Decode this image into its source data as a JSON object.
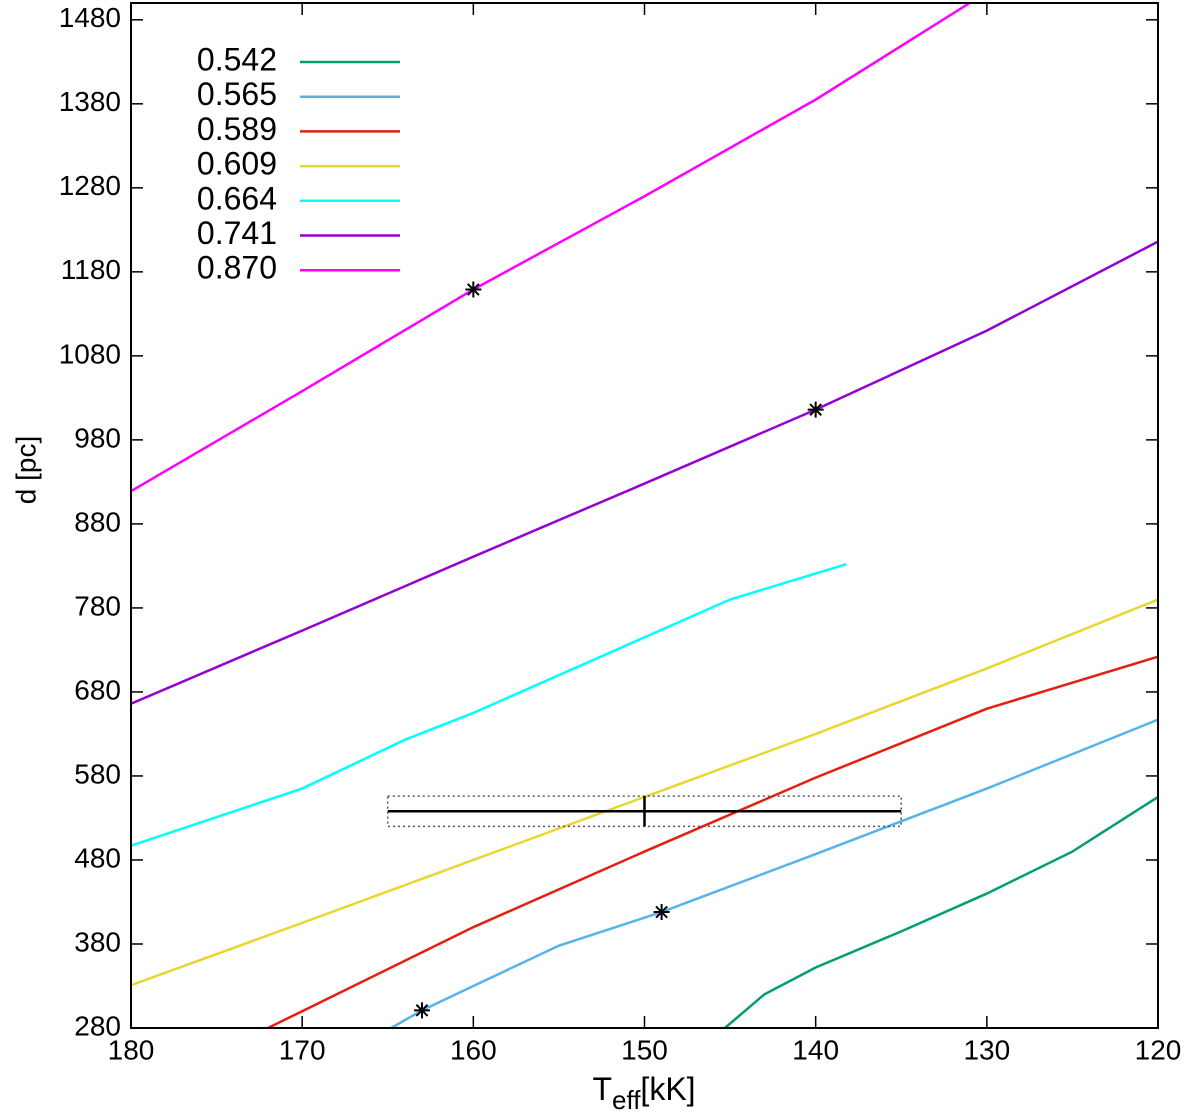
{
  "chart_data": {
    "type": "line",
    "xlabel": "T",
    "xlabel_sub": "eff",
    "xlabel_unit": "[kK]",
    "ylabel": "d [pc]",
    "xlim": [
      180,
      120
    ],
    "ylim": [
      280,
      1500
    ],
    "xticks": [
      180,
      170,
      160,
      150,
      140,
      130,
      120
    ],
    "yticks": [
      280,
      380,
      480,
      580,
      680,
      780,
      880,
      980,
      1080,
      1180,
      1280,
      1380,
      1480
    ],
    "legend": "top-left",
    "series": [
      {
        "name": "0.542",
        "color": "#009e73",
        "x": [
          145.3,
          143,
          140,
          135,
          130,
          125,
          120
        ],
        "values": [
          280,
          320,
          352,
          395,
          440,
          490,
          555
        ]
      },
      {
        "name": "0.565",
        "color": "#56b4e9",
        "x": [
          164.8,
          163,
          160,
          155,
          149,
          140,
          130,
          120
        ],
        "values": [
          280,
          301,
          330,
          378,
          418,
          487,
          565,
          647
        ]
      },
      {
        "name": "0.589",
        "color": "#e51e10",
        "x": [
          172,
          170,
          160,
          150,
          140,
          130,
          120
        ],
        "values": [
          280,
          300,
          400,
          490,
          578,
          660,
          722
        ]
      },
      {
        "name": "0.609",
        "color": "#e8d72e",
        "x": [
          180,
          170,
          160,
          150,
          140,
          130,
          120
        ],
        "values": [
          331,
          405,
          480,
          555,
          630,
          708,
          790
        ]
      },
      {
        "name": "0.664",
        "color": "#00ffff",
        "x": [
          180,
          170,
          164,
          160,
          150,
          145,
          138.2
        ],
        "values": [
          497,
          565,
          623,
          655,
          745,
          790,
          832
        ]
      },
      {
        "name": "0.741",
        "color": "#9400d3",
        "x": [
          180,
          170,
          160,
          150,
          140,
          130,
          120
        ],
        "values": [
          666,
          753,
          841,
          928,
          1016,
          1110,
          1216
        ]
      },
      {
        "name": "0.870",
        "color": "#ff00ff",
        "x": [
          180,
          170,
          160,
          150,
          140,
          131
        ],
        "values": [
          919,
          1038,
          1159,
          1270,
          1385,
          1500
        ]
      }
    ],
    "markers": {
      "x": [
        160,
        140,
        149,
        163
      ],
      "values": [
        1159,
        1016,
        418,
        301
      ]
    },
    "errorbar": {
      "x": 150,
      "y": 538,
      "xerr": 15,
      "yerr": 18
    }
  }
}
